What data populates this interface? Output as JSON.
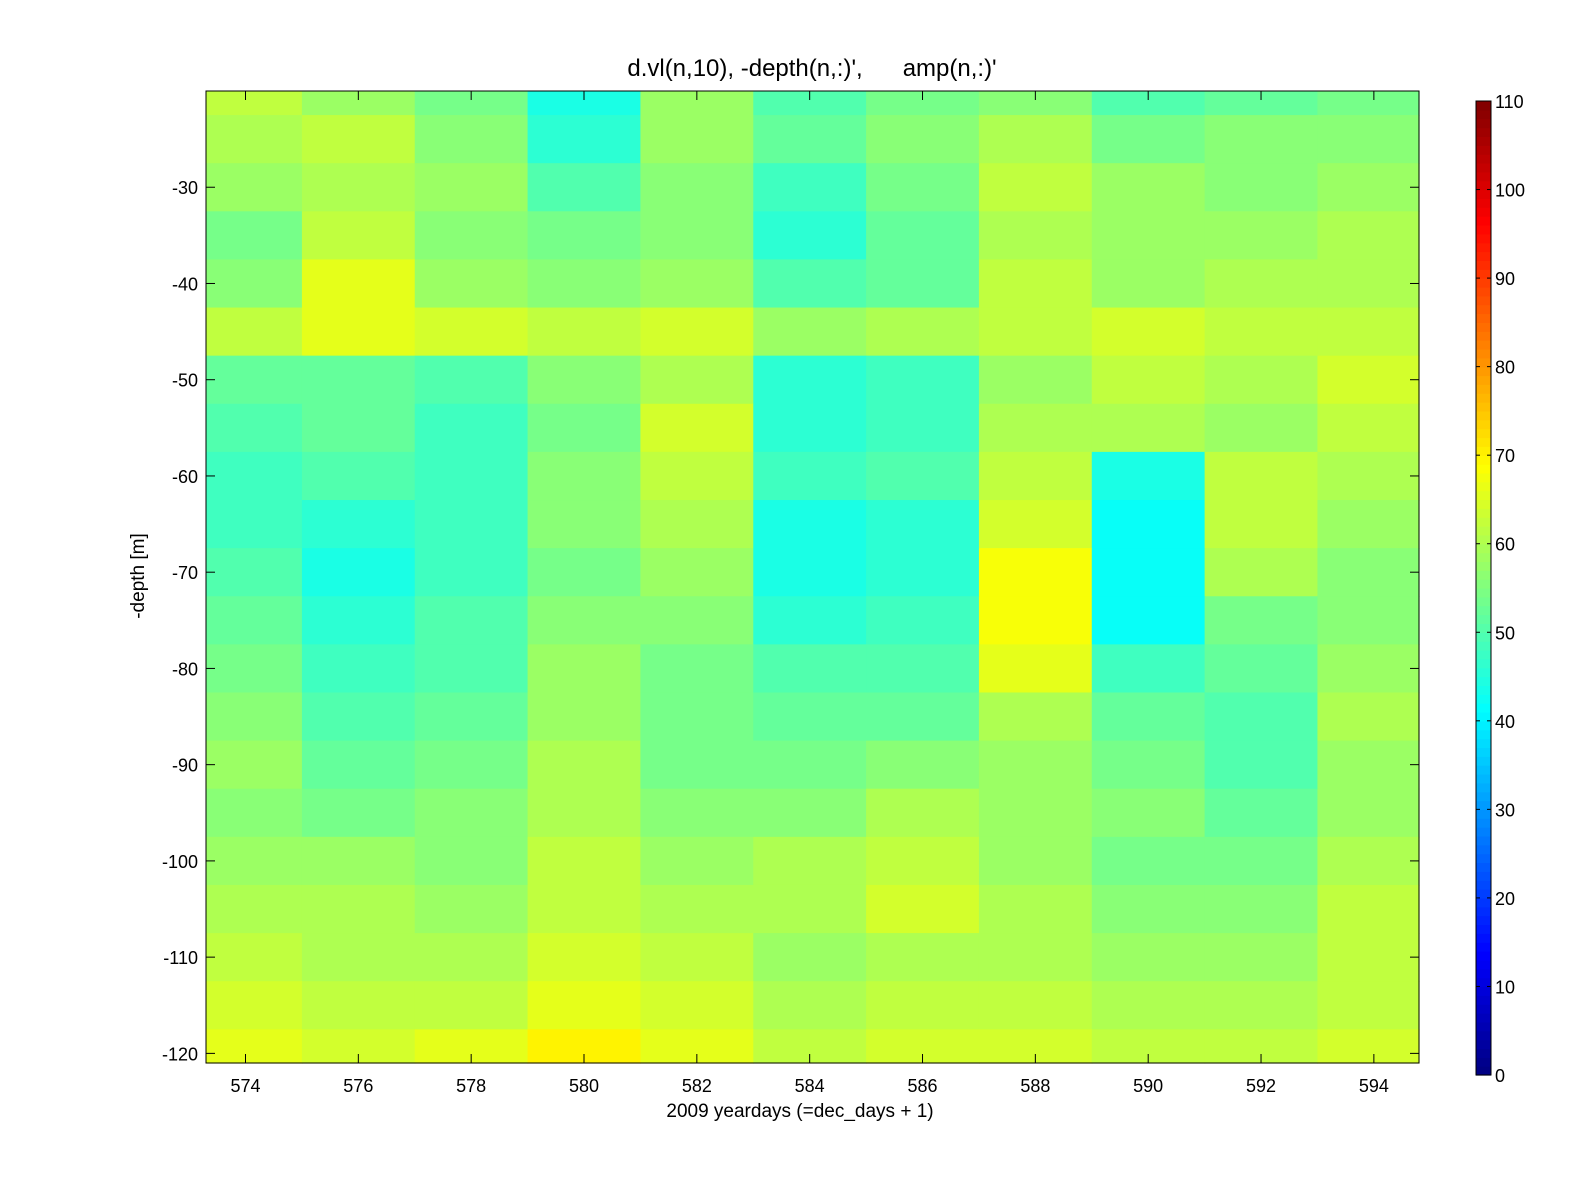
{
  "chart_data": {
    "type": "heatmap",
    "title": "d.vl(n,10), -depth(n,:)',      amp(n,:)'",
    "xlabel": "2009 yeardays (=dec_days + 1)",
    "ylabel": "-depth [m]",
    "xlim": [
      573.3,
      594.8
    ],
    "ylim": [
      -121,
      -20
    ],
    "clim": [
      0,
      110
    ],
    "colormap": "jet",
    "grid": false,
    "colorbar": "right",
    "x_ticks": [
      574,
      576,
      578,
      580,
      582,
      584,
      586,
      588,
      590,
      592,
      594
    ],
    "y_ticks": [
      -30,
      -40,
      -50,
      -60,
      -70,
      -80,
      -90,
      -100,
      -110,
      -120
    ],
    "colorbar_ticks": [
      0,
      10,
      20,
      30,
      40,
      50,
      60,
      70,
      80,
      90,
      100,
      110
    ],
    "x_tick_labels": [
      "574",
      "576",
      "578",
      "580",
      "582",
      "584",
      "586",
      "588",
      "590",
      "592",
      "594"
    ],
    "y_tick_labels": [
      "-30",
      "-40",
      "-50",
      "-60",
      "-70",
      "-80",
      "-90",
      "-100",
      "-110",
      "-120"
    ],
    "colorbar_tick_labels": [
      "0",
      "10",
      "20",
      "30",
      "40",
      "50",
      "60",
      "70",
      "80",
      "90",
      "100",
      "110"
    ],
    "bin_depths": [
      -20,
      -25,
      -30,
      -35,
      -40,
      -45,
      -50,
      -55,
      -60,
      -65,
      -70,
      -75,
      -80,
      -85,
      -90,
      -95,
      -100,
      -105,
      -110,
      -115,
      -120
    ],
    "time_bins": [
      574,
      576,
      578,
      580,
      582,
      584,
      586,
      588,
      590,
      592,
      594
    ],
    "values": [
      [
        62,
        58,
        54,
        44,
        58,
        50,
        54,
        56,
        50,
        52,
        54
      ],
      [
        60,
        62,
        56,
        46,
        58,
        52,
        56,
        60,
        54,
        56,
        56
      ],
      [
        58,
        60,
        58,
        50,
        56,
        48,
        54,
        62,
        58,
        56,
        58
      ],
      [
        54,
        62,
        56,
        54,
        56,
        46,
        52,
        60,
        58,
        58,
        60
      ],
      [
        56,
        66,
        58,
        56,
        58,
        50,
        52,
        62,
        58,
        60,
        60
      ],
      [
        62,
        66,
        64,
        62,
        64,
        58,
        60,
        62,
        64,
        62,
        62
      ],
      [
        52,
        52,
        50,
        56,
        60,
        46,
        48,
        58,
        62,
        60,
        64
      ],
      [
        50,
        52,
        48,
        54,
        64,
        46,
        48,
        60,
        60,
        58,
        62
      ],
      [
        48,
        50,
        48,
        56,
        62,
        48,
        50,
        62,
        44,
        62,
        60
      ],
      [
        48,
        46,
        48,
        56,
        60,
        44,
        46,
        64,
        42,
        62,
        58
      ],
      [
        50,
        44,
        48,
        54,
        58,
        44,
        46,
        68,
        42,
        60,
        56
      ],
      [
        52,
        46,
        50,
        56,
        56,
        46,
        48,
        68,
        42,
        54,
        56
      ],
      [
        54,
        48,
        50,
        58,
        54,
        50,
        50,
        66,
        48,
        52,
        58
      ],
      [
        56,
        50,
        52,
        58,
        54,
        52,
        52,
        60,
        52,
        50,
        60
      ],
      [
        58,
        52,
        54,
        60,
        54,
        54,
        56,
        58,
        54,
        50,
        58
      ],
      [
        56,
        54,
        56,
        60,
        56,
        56,
        60,
        58,
        56,
        52,
        58
      ],
      [
        58,
        58,
        56,
        62,
        58,
        60,
        62,
        58,
        54,
        54,
        60
      ],
      [
        60,
        60,
        58,
        62,
        60,
        60,
        64,
        60,
        56,
        56,
        62
      ],
      [
        62,
        60,
        60,
        64,
        62,
        58,
        60,
        60,
        58,
        58,
        62
      ],
      [
        64,
        62,
        62,
        66,
        64,
        60,
        62,
        62,
        60,
        60,
        62
      ],
      [
        66,
        64,
        66,
        70,
        66,
        62,
        64,
        64,
        62,
        62,
        64
      ]
    ]
  }
}
